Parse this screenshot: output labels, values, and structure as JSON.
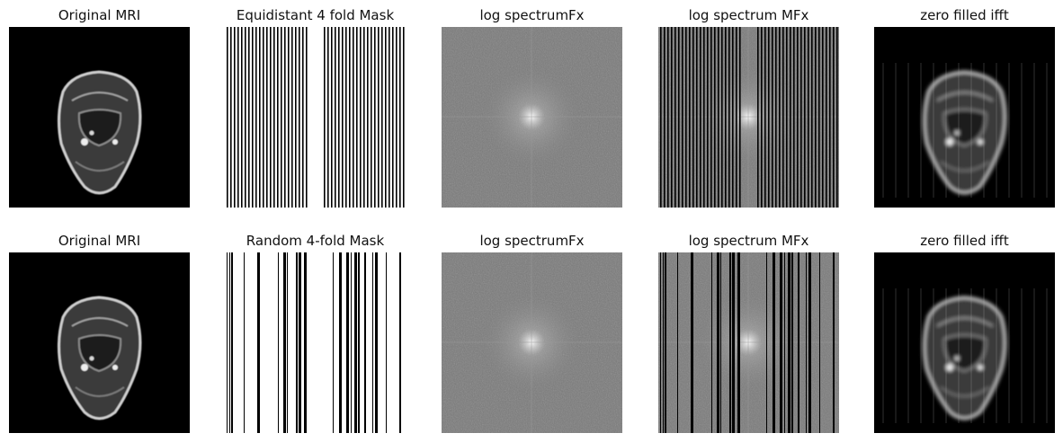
{
  "figure": {
    "rows": [
      {
        "panels": [
          {
            "title": "Original MRI",
            "kind": "mri"
          },
          {
            "title": "Equidistant 4 fold Mask",
            "kind": "mask",
            "mask": "equidistant"
          },
          {
            "title": "log spectrumFx",
            "kind": "spectrum"
          },
          {
            "title": "log spectrum MFx",
            "kind": "masked-spectrum",
            "mask": "equidistant"
          },
          {
            "title": "zero filled ifft",
            "kind": "recon"
          }
        ]
      },
      {
        "panels": [
          {
            "title": "Original MRI",
            "kind": "mri"
          },
          {
            "title": "Random 4-fold Mask",
            "kind": "mask",
            "mask": "random"
          },
          {
            "title": "log spectrumFx",
            "kind": "spectrum"
          },
          {
            "title": "log spectrum MFx",
            "kind": "masked-spectrum",
            "mask": "random"
          },
          {
            "title": "zero filled ifft",
            "kind": "recon"
          }
        ]
      }
    ],
    "colormap": "gray",
    "mask_acceleration": 4
  }
}
